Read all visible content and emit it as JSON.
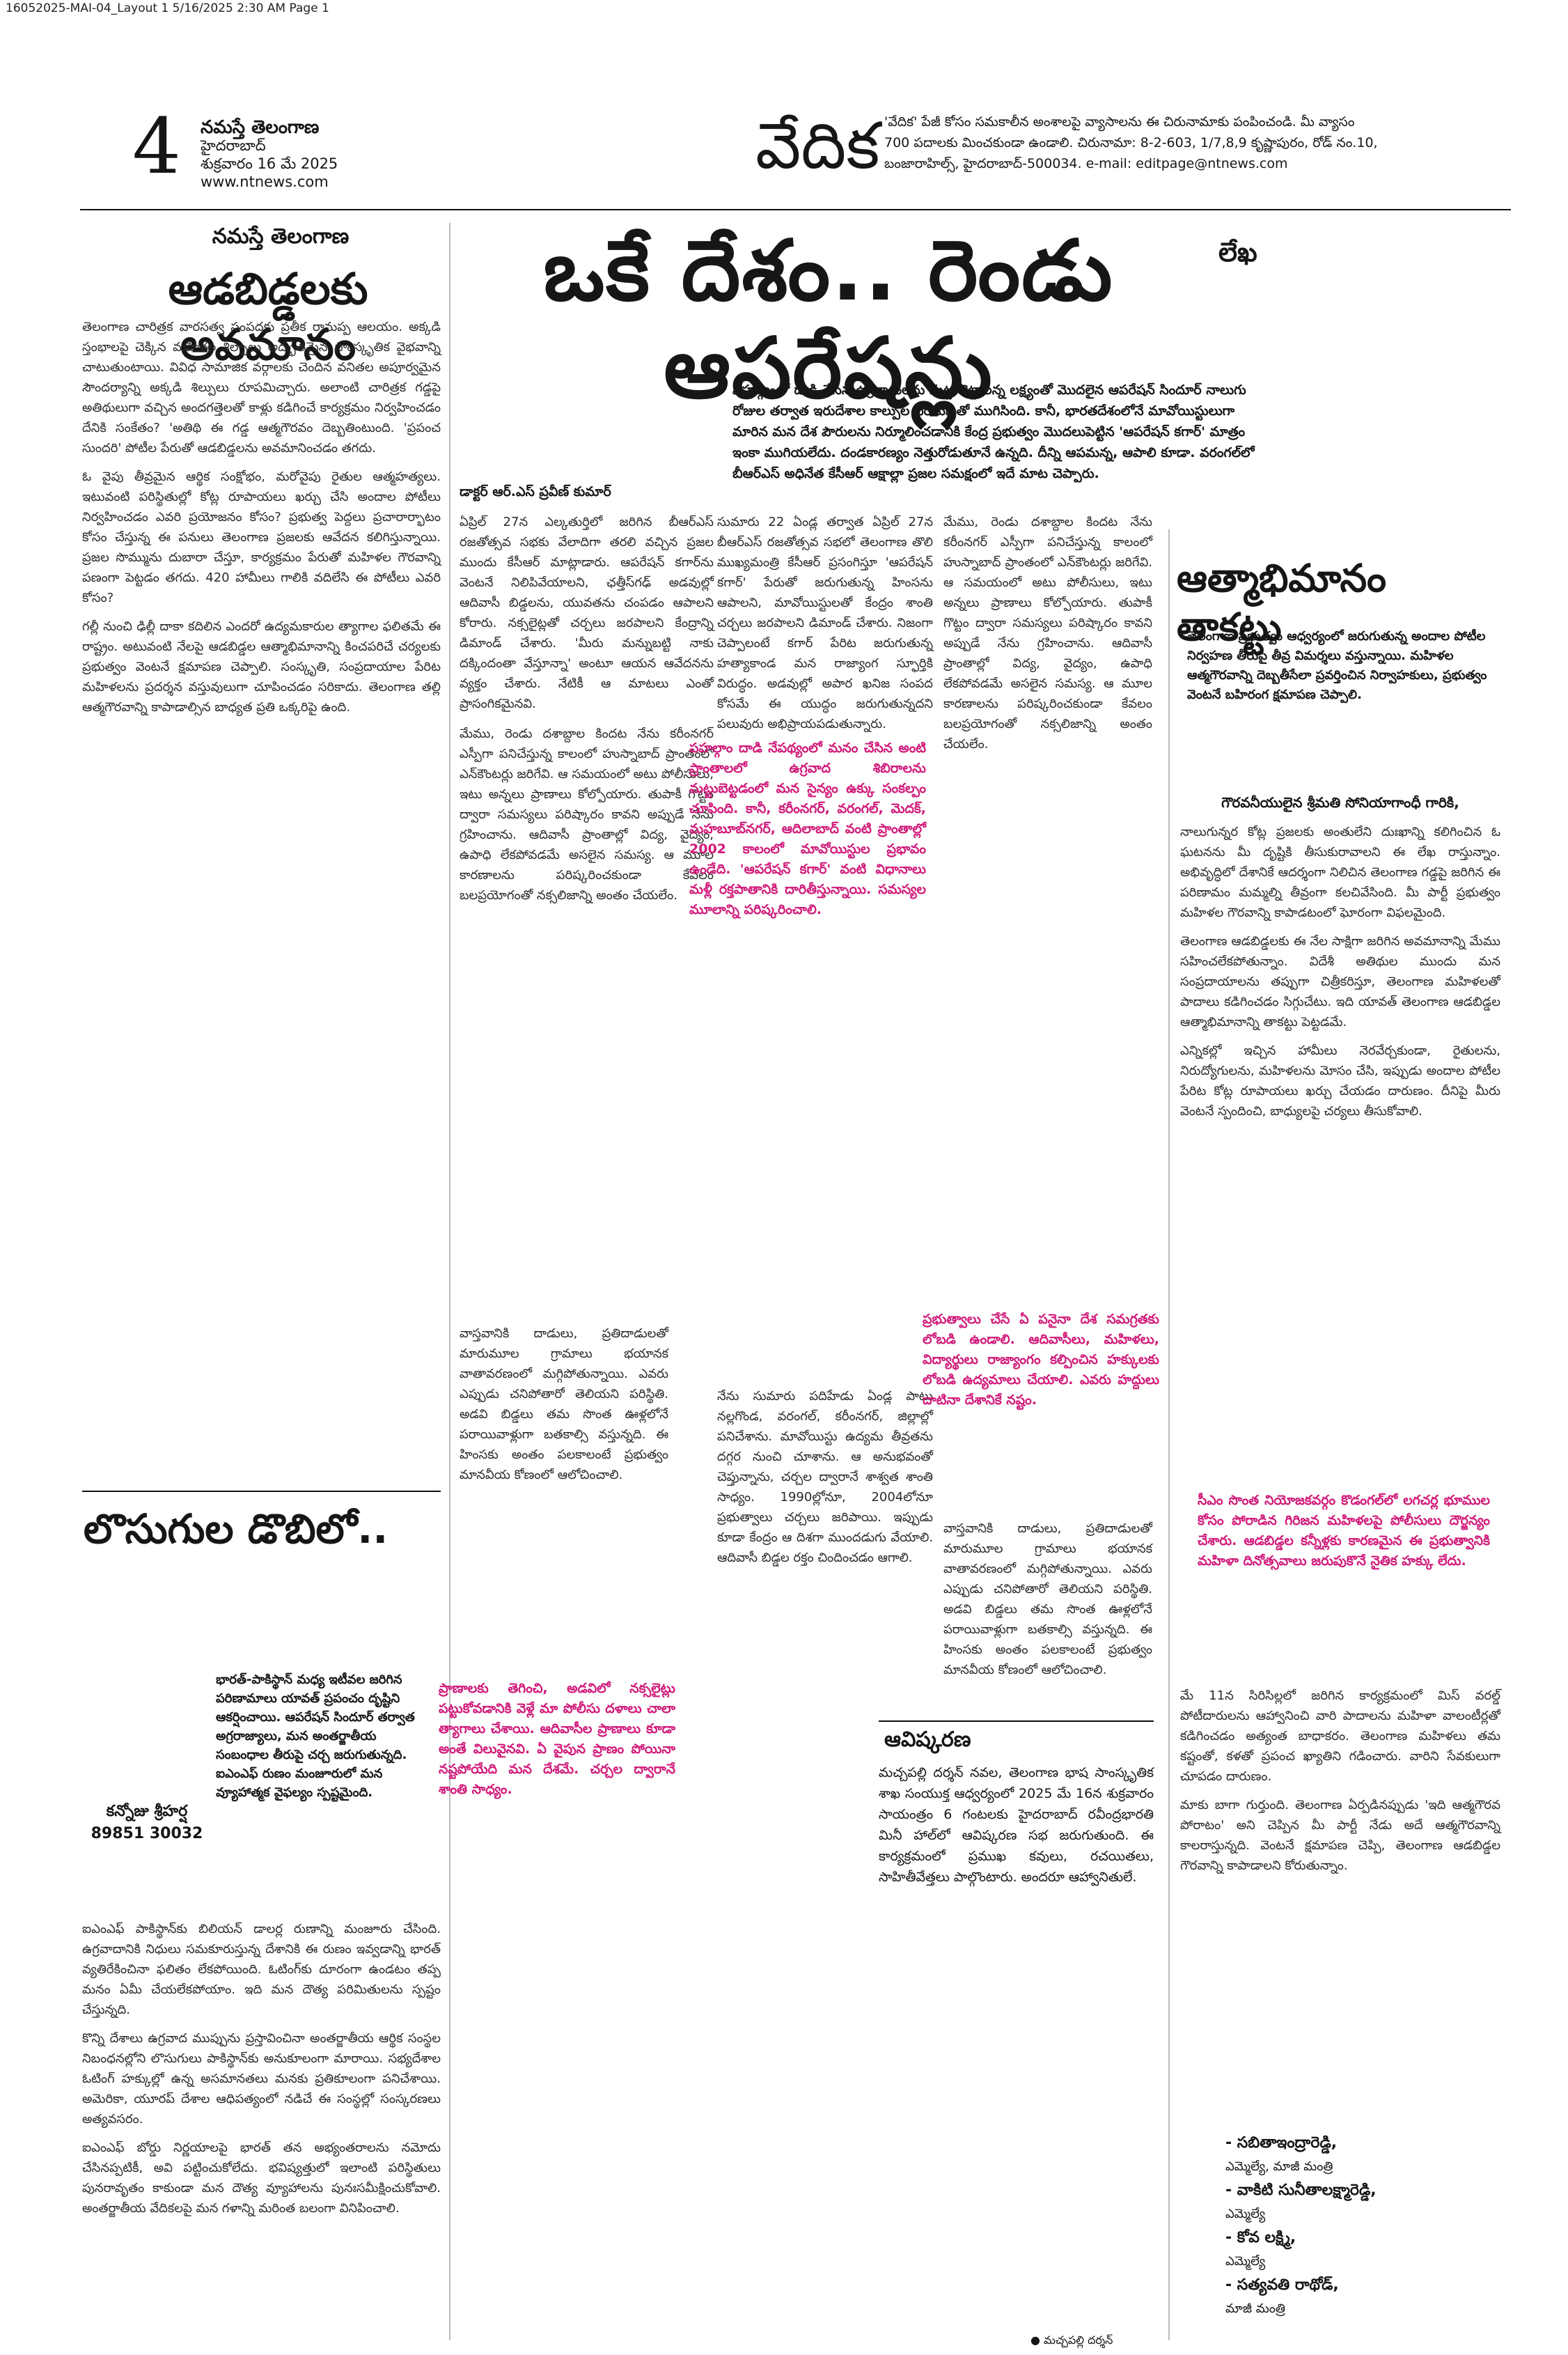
{
  "slug": "16052025-MAI-04_Layout 1  5/16/2025  2:30 AM  Page 1",
  "masthead": {
    "page_number": "4",
    "paper_name": "నమస్తే తెలంగాణ",
    "city": "హైదరాబాద్",
    "date": "శుక్రవారం 16 మే 2025",
    "website": "www.ntnews.com",
    "section_title": "వేదిక",
    "notice_line1": "'వేదిక' పేజీ కోసం సమకాలీన అంశాలపై వ్యాసాలను ఈ చిరునామాకు పంపించండి. మీ వ్యాసం",
    "notice_line2": "700 పదాలకు మించకుండా ఉండాలి. చిరునామా: 8-2-603, 1/7,8,9 కృష్ణాపురం, రోడ్ నం.10,",
    "notice_line3": "బంజారాహిల్స్, హైదరాబాద్-500034. e-mail: editpage@ntnews.com"
  },
  "article1": {
    "kicker": "నమస్తే తెలంగాణ",
    "headline": "ఆడబిడ్డలకు అవమానం",
    "p1": "తెలంగాణ చారిత్రక వారసత్వ సంపదకు ప్రతీక రామప్ప ఆలయం. అక్కడి స్తంభాలపై చెక్కిన మహిళల శిల్పాలు అద్భుతమైన సాంస్కృతిక వైభవాన్ని చాటుతుంటాయి. వివిధ సామాజిక వర్గాలకు చెందిన వనితల అపూర్వమైన సౌందర్యాన్ని అక్కడి శిల్పులు రూపమిచ్చారు. అలాంటి చారిత్రక గడ్డపై అతిథులుగా వచ్చిన అందగత్తెలతో కాళ్లు కడిగించే కార్యక్రమం నిర్వహించడం దేనికి సంకేతం? 'అతిథి ఈ గడ్డ ఆత్మగౌరవం దెబ్బతింటుంది. 'ప్రపంచ సుందరి' పోటీల పేరుతో ఆడబిడ్డలను అవమానించడం తగదు.",
    "p2": "ఓ వైపు తీవ్రమైన ఆర్థిక సంక్షోభం, మరోవైపు రైతుల ఆత్మహత్యలు. ఇటువంటి పరిస్థితుల్లో కోట్ల రూపాయలు ఖర్చు చేసి అందాల పోటీలు నిర్వహించడం ఎవరి ప్రయోజనం కోసం? ప్రభుత్వ పెద్దలు ప్రచారార్భాటం కోసం చేస్తున్న ఈ పనులు తెలంగాణ ప్రజలకు ఆవేదన కలిగిస్తున్నాయి. ప్రజల సొమ్మును దుబారా చేస్తూ, కార్యక్రమం పేరుతో మహిళల గౌరవాన్ని పణంగా పెట్టడం తగదు. 420 హామీలు గాలికి వదిలేసి ఈ పోటీలు ఎవరి కోసం?",
    "p3": "గల్లీ నుంచి ఢిల్లీ దాకా కదిలిన ఎందరో ఉద్యమకారుల త్యాగాల ఫలితమే ఈ రాష్ట్రం. అటువంటి నేలపై ఆడబిడ్డల ఆత్మాభిమానాన్ని కించపరిచే చర్యలకు ప్రభుత్వం వెంటనే క్షమాపణ చెప్పాలి. సంస్కృతి, సంప్రదాయాల పేరిట మహిళలను ప్రదర్శన వస్తువులుగా చూపించడం సరికాదు. తెలంగాణ తల్లి ఆత్మగౌరవాన్ని కాపాడాల్సిన బాధ్యత ప్రతి ఒక్కరిపై ఉంది."
  },
  "main_article": {
    "headline": "ఒకే దేశం.. రెండు ఆపరేషన్లు",
    "column_tag": "లేఖ",
    "dek": "పహల్గాంలో దాడి చేసిన ఉగ్రవాదులను మట్టుబెట్టాలన్న లక్ష్యంతో మొదలైన ఆపరేషన్ సిందూర్ నాలుగు రోజుల తర్వాత ఇరుదేశాల కాల్పుల విరమణతో ముగిసింది. కానీ, భారతదేశంలోనే మావోయిస్టులుగా మారిన మన దేశ పౌరులను నిర్మూలించడానికి కేంద్ర ప్రభుత్వం మొదలుపెట్టిన 'ఆపరేషన్ కగార్' మాత్రం ఇంకా ముగియలేదు. దండకారణ్యం నెత్తురోడుతూనే ఉన్నది. దీన్ని ఆపమన్న, ఆపాలి కూడా. వరంగల్‌లో బీఆర్‌ఎస్ అధినేత కేసీఆర్ ఆక్షాల్లా ప్రజల సమక్షంలో ఇదే మాట చెప్పారు.",
    "byline": "డాక్టర్ ఆర్.ఎస్ ప్రవీణ్ కుమార్",
    "c1": "ఏప్రిల్ 27న ఎల్కతుర్తిలో జరిగిన బీఆర్‌ఎస్ రజతోత్సవ సభకు వేలాదిగా తరలి వచ్చిన ప్రజల ముందు కేసీఆర్ మాట్లాడారు. ఆపరేషన్ కగార్‌ను వెంటనే నిలిపివేయాలని, ఛత్తీస్‌గఢ్ అడవుల్లో ఆదివాసీ బిడ్డలను, యువతను చంపడం ఆపాలని కోరారు. నక్సలైట్లతో చర్చలు జరపాలని కేంద్రాన్ని డిమాండ్ చేశారు. 'మీరు మన్నుబట్టి నాకు దక్కిందంతా వేస్తూన్నా' అంటూ ఆయన ఆవేదనను వ్యక్తం చేశారు. నేటికీ ఆ మాటలు ఎంతో ప్రాసంగికమైనవి.",
    "c2": "మేము, రెండు దశాబ్దాల కిందట నేను కరీంనగర్ ఎస్పీగా పనిచేస్తున్న కాలంలో హుస్నాబాద్ ప్రాంతంలో ఎన్‌కౌంటర్లు జరిగేవి. ఆ సమయంలో అటు పోలీసులు, ఇటు అన్నలు ప్రాణాలు కోల్పోయారు. తుపాకీ గొట్టం ద్వారా సమస్యలు పరిష్కారం కావని అప్పుడే నేను గ్రహించాను. ఆదివాసీ ప్రాంతాల్లో విద్య, వైద్యం, ఉపాధి లేకపోవడమే అసలైన సమస్య. ఆ మూల కారణాలను పరిష్కరించకుండా కేవలం బలప్రయోగంతో నక్సలిజాన్ని అంతం చేయలేం.",
    "c3": "సుమారు 22 ఏండ్ల తర్వాత ఏప్రిల్ 27న బీఆర్‌ఎస్ రజతోత్సవ సభలో తెలంగాణ తొలి ముఖ్యమంత్రి కేసీఆర్ ప్రసంగిస్తూ 'ఆపరేషన్ కగార్' పేరుతో జరుగుతున్న హింసను ఆపాలని, మావోయిస్టులతో కేంద్రం శాంతి చర్చలు జరపాలని డిమాండ్ చేశారు. నిజంగా చెప్పాలంటే కగార్ పేరిట జరుగుతున్న హత్యాకాండ మన రాజ్యాంగ స్ఫూర్తికి విరుద్ధం. అడవుల్లో అపార ఖనిజ సంపద కోసమే ఈ యుద్ధం జరుగుతున్నదని పలువురు అభిప్రాయపడుతున్నారు.",
    "c4": "నేను సుమారు పదిహేడు ఏండ్ల పాటు నల్లగొండ, వరంగల్, కరీంనగర్, జిల్లాల్లో పనిచేశాను. మావోయిస్టు ఉద్యమ తీవ్రతను దగ్గర నుంచి చూశాను. ఆ అనుభవంతో చెప్తున్నాను, చర్చల ద్వారానే శాశ్వత శాంతి సాధ్యం. 1990ల్లోనూ, 2004లోనూ ప్రభుత్వాలు చర్చలు జరిపాయి. ఇప్పుడు కూడా కేంద్రం ఆ దిశగా ముందడుగు వేయాలి. ఆదివాసీ బిడ్డల రక్తం చిందించడం ఆగాలి.",
    "c5": "వాస్తవానికి దాడులు, ప్రతిదాడులతో మారుమూల గ్రామాలు భయానక వాతావరణంలో మగ్గిపోతున్నాయి. ఎవరు ఎప్పుడు చనిపోతారో తెలియని పరిస్థితి. అడవి బిడ్డలు తమ సొంత ఊళ్లలోనే పరాయివాళ్లుగా బతకాల్సి వస్తున్నది. ఈ హింసకు అంతం పలకాలంటే ప్రభుత్వం మానవీయ కోణంలో ఆలోచించాలి."
  },
  "pull_quotes": {
    "q1": "పహల్గాం దాడి నేపథ్యంలో మనం చేసిన అంటి ప్రాంతాలలో ఉగ్రవాద శిబిరాలను మట్టుబెట్టడంలో మన సైన్యం ఉక్కు సంకల్పం చూపింది. కానీ, కరీంనగర్, వరంగల్, మెదక్, మహబూబ్‌నగర్, ఆదిలాబాద్ వంటి ప్రాంతాల్లో 2002 కాలంలో మావోయిస్టుల ప్రభావం ఉండేది. 'ఆపరేషన్ కగార్' వంటి విధానాలు మళ్లీ రక్తపాతానికి దారితీస్తున్నాయి. సమస్యల మూలాన్ని పరిష్కరించాలి.",
    "q2": "ప్రాణాలకు తెగించి, అడవిలో నక్సలైట్లు పట్టుకోవడానికి వెళ్లే మా పోలీసు దళాలు చాలా త్యాగాలు చేశాయి. ఆదివాసీల ప్రాణాలు కూడా అంతే విలువైనవి. ఏ వైపున ప్రాణం పోయినా నష్టపోయేది మన దేశమే. చర్చల ద్వారానే శాంతి సాధ్యం.",
    "q3": "ప్రభుత్వాలు చేసే ఏ పనైనా దేశ సమగ్రతకు లోబడి ఉండాలి. ఆదివాసీలు, మహిళలు, విద్యార్థులు రాజ్యాంగం కల్పించిన హక్కులకు లోబడి ఉద్యమాలు చేయాలి. ఎవరు హద్దులు దాటినా దేశానికే నష్టం."
  },
  "article3": {
    "headline": "ఆత్మాభిమానం తాకట్టు",
    "dek": "తెలంగాణ ప్రభుత్వం ఆధ్వర్యంలో జరుగుతున్న అందాల పోటీల నిర్వహణ తీరుపై తీవ్ర విమర్శలు వస్తున్నాయి. మహిళల ఆత్మగౌరవాన్ని దెబ్బతీసేలా ప్రవర్తించిన నిర్వాహకులు, ప్రభుత్వం వెంటనే బహిరంగ క్షమాపణ చెప్పాలి.",
    "salutation": "గౌరవనీయులైన శ్రీమతి సోనియాగాంధీ గారికి,",
    "p1": "నాలుగున్నర కోట్ల ప్రజలకు అంతులేని దుఃఖాన్ని కలిగించిన ఓ ఘటనను మీ దృష్టికి తీసుకురావాలని ఈ లేఖ రాస్తున్నాం. అభివృద్ధిలో దేశానికే ఆదర్శంగా నిలిచిన తెలంగాణ గడ్డపై జరిగిన ఈ పరిణామం మమ్మల్ని తీవ్రంగా కలచివేసింది. మీ పార్టీ ప్రభుత్వం మహిళల గౌరవాన్ని కాపాడటంలో ఘోరంగా విఫలమైంది.",
    "p2": "తెలంగాణ ఆడబిడ్డలకు ఈ నేల సాక్షిగా జరిగిన అవమానాన్ని మేము సహించలేకపోతున్నాం. విదేశీ అతిథుల ముందు మన సంప్రదాయాలను తప్పుగా చిత్రీకరిస్తూ, తెలంగాణ మహిళలతో పాదాలు కడిగించడం సిగ్గుచేటు. ఇది యావత్ తెలంగాణ ఆడబిడ్డల ఆత్మాభిమానాన్ని తాకట్టు పెట్టడమే.",
    "p3": "ఎన్నికల్లో ఇచ్చిన హామీలు నెరవేర్చకుండా, రైతులను, నిరుద్యోగులను, మహిళలను మోసం చేసి, ఇప్పుడు అందాల పోటీల పేరిట కోట్ల రూపాయలు ఖర్చు చేయడం దారుణం. దీనిపై మీరు వెంటనే స్పందించి, బాధ్యులపై చర్యలు తీసుకోవాలి.",
    "pink": "సీఎం సొంత నియోజకవర్గం కొడంగల్‌లో లగచర్ల భూముల కోసం పోరాడిన గిరిజన మహిళలపై పోలీసులు దౌర్జన్యం చేశారు. ఆడబిడ్డల కన్నీళ్లకు కారణమైన ఈ ప్రభుత్వానికి మహిళా దినోత్సవాలు జరుపుకొనే నైతిక హక్కు లేదు.",
    "p4": "మే 11న సిరిసిల్లలో జరిగిన కార్యక్రమంలో మిస్ వరల్డ్ పోటీదారులను ఆహ్వానించి వారి పాదాలను మహిళా వాలంటీర్లతో కడిగించడం అత్యంత బాధాకరం. తెలంగాణ మహిళలు తమ కష్టంతో, కళతో ప్రపంచ ఖ్యాతిని గడించారు. వారిని సేవకులుగా చూపడం దారుణం.",
    "p5": "మాకు బాగా గుర్తుంది. తెలంగాణ ఏర్పడినప్పుడు 'ఇది ఆత్మగౌరవ పోరాటం' అని చెప్పిన మీ పార్టీ నేడు అదే ఆత్మగౌరవాన్ని కాలరాస్తున్నది. వెంటనే క్షమాపణ చెప్పి, తెలంగాణ ఆడబిడ్డల గౌరవాన్ని కాపాడాలని కోరుతున్నాం.",
    "signatories": [
      {
        "name": "- సబితాఇంద్రారెడ్డి,",
        "title": "ఎమ్మెల్యే, మాజీ మంత్రి"
      },
      {
        "name": "- వాకిటి సునీతాలక్ష్మారెడ్డి,",
        "title": "ఎమ్మెల్యే"
      },
      {
        "name": "- కోవ లక్ష్మి,",
        "title": "ఎమ్మెల్యే"
      },
      {
        "name": "- సత్యవతి రాథోడ్,",
        "title": "మాజీ మంత్రి"
      }
    ]
  },
  "article4": {
    "headline": "లొసుగుల డొబిలో..",
    "summary": "భారత్-పాకిస్థాన్ మధ్య ఇటీవల జరిగిన పరిణామాలు యావత్ ప్రపంచం దృష్టిని ఆకర్షించాయి. ఆపరేషన్ సిందూర్ తర్వాత అగ్రరాజ్యాలు, మన అంతర్జాతీయ సంబంధాల తీరుపై చర్చ జరుగుతున్నది. ఐఎంఎఫ్ రుణం మంజూరులో మన వ్యూహాత్మక వైఫల్యం స్పష్టమైంది.",
    "author": "కన్నోజు శ్రీహర్ష",
    "phone": "89851 30032",
    "p1": "ఐఎంఎఫ్ పాకిస్థాన్‌కు బిలియన్ డాలర్ల రుణాన్ని మంజూరు చేసింది. ఉగ్రవాదానికి నిధులు సమకూరుస్తున్న దేశానికి ఈ రుణం ఇవ్వడాన్ని భారత్ వ్యతిరేకించినా ఫలితం లేకపోయింది. ఓటింగ్‌కు దూరంగా ఉండటం తప్ప మనం ఏమీ చేయలేకపోయాం. ఇది మన దౌత్య పరిమితులను స్పష్టం చేస్తున్నది.",
    "p2": "కొన్ని దేశాలు ఉగ్రవాద ముప్పును ప్రస్తావించినా అంతర్జాతీయ ఆర్థిక సంస్థల నిబంధనల్లోని లొసుగులు పాకిస్థాన్‌కు అనుకూలంగా మారాయి. సభ్యదేశాల ఓటింగ్ హక్కుల్లో ఉన్న అసమానతలు మనకు ప్రతికూలంగా పనిచేశాయి. అమెరికా, యూరప్ దేశాల ఆధిపత్యంలో నడిచే ఈ సంస్థల్లో సంస్కరణలు అత్యవసరం.",
    "p3": "ఐఎంఎఫ్ బోర్డు నిర్ణయాలపై భారత్ తన అభ్యంతరాలను నమోదు చేసినప్పటికీ, అవి పట్టించుకోలేదు. భవిష్యత్తులో ఇలాంటి పరిస్థితులు పునరావృతం కాకుండా మన దౌత్య వ్యూహాలను పునఃసమీక్షించుకోవాలి. అంతర్జాతీయ వేదికలపై మన గళాన్ని మరింత బలంగా వినిపించాలి."
  },
  "avishkarana": {
    "title": "ఆవిష్కరణ",
    "text": "మచ్చపల్లి దర్శన్ నవల, తెలంగాణ భాష సాంస్కృతిక శాఖ సంయుక్త ఆధ్వర్యంలో 2025 మే 16న శుక్రవారం సాయంత్రం 6 గంటలకు హైదరాబాద్ రవీంద్రభారతి మినీ హాల్‌లో ఆవిష్కరణ సభ జరుగుతుంది. ఈ కార్యక్రమంలో ప్రముఖ కవులు, రచయితలు, సాహితీవేత్తలు పాల్గొంటారు. అందరూ ఆహ్వానితులే.",
    "credit": "● మచ్చపల్లి దర్శన్"
  }
}
